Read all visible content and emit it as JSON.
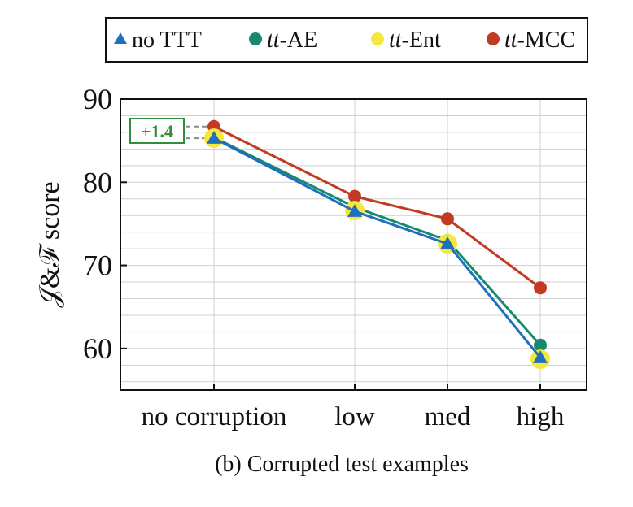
{
  "caption": "(b) Corrupted test examples",
  "chart_data": {
    "type": "line",
    "title": "",
    "xlabel": "",
    "ylabel": "𝒥&ℱ score",
    "categories": [
      "no corruption",
      "low",
      "med",
      "high"
    ],
    "ylim": [
      55,
      90
    ],
    "yticks": [
      60,
      70,
      80,
      90
    ],
    "grid": true,
    "legend_position": "top",
    "series": [
      {
        "name": "no TTT",
        "name_italic": "",
        "name_plain": "no TTT",
        "marker": "triangle",
        "color": "#1f6fbf",
        "values": [
          85.3,
          76.5,
          72.6,
          58.9
        ]
      },
      {
        "name": "tt-AE",
        "name_italic": "tt",
        "name_plain": "-AE",
        "marker": "circle",
        "color": "#158a6c",
        "values": [
          85.4,
          77.0,
          73.0,
          60.4
        ]
      },
      {
        "name": "tt-Ent",
        "name_italic": "tt",
        "name_plain": "-Ent",
        "marker": "circle",
        "color": "#f6e73d",
        "values": [
          85.3,
          76.6,
          72.6,
          58.7
        ]
      },
      {
        "name": "tt-MCC",
        "name_italic": "tt",
        "name_plain": "-MCC",
        "marker": "circle",
        "color": "#c23a22",
        "values": [
          86.7,
          78.3,
          75.6,
          67.3
        ]
      }
    ],
    "annotations": [
      {
        "text": "+1.4",
        "from": 85.3,
        "to": 86.7,
        "color": "#2f8f3a"
      }
    ]
  }
}
